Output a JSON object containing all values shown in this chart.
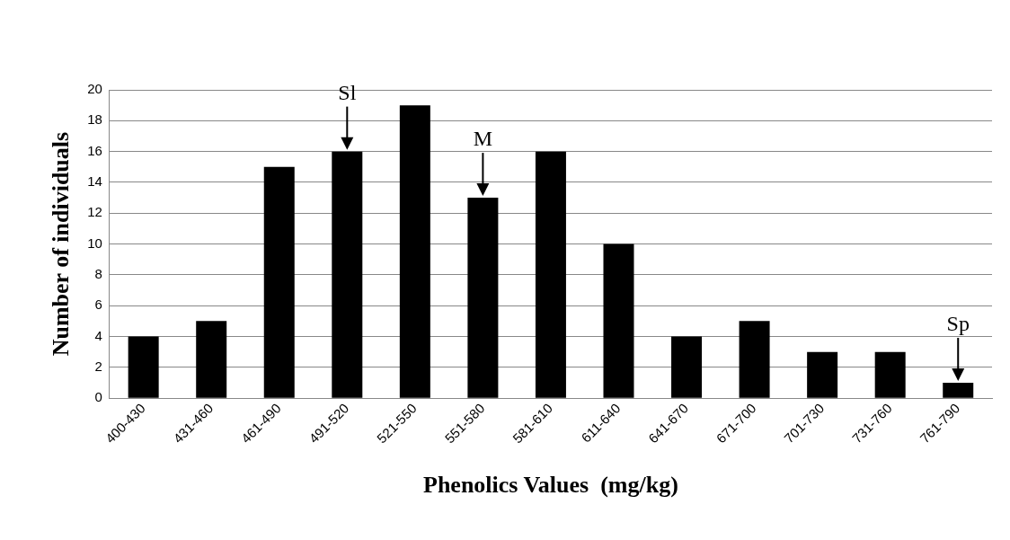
{
  "chart_data": {
    "type": "bar",
    "xlabel": "Phenolics Values  (mg/kg)",
    "ylabel": "Number of individuals",
    "categories": [
      "400-430",
      "431-460",
      "461-490",
      "491-520",
      "521-550",
      "551-580",
      "581-610",
      "611-640",
      "641-670",
      "671-700",
      "701-730",
      "731-760",
      "761-790"
    ],
    "values": [
      4,
      5,
      15,
      16,
      19,
      13,
      16,
      10,
      4,
      5,
      3,
      3,
      1
    ],
    "color": "#000000",
    "ylim": [
      0,
      20
    ],
    "yticks": [
      0,
      2,
      4,
      6,
      8,
      10,
      12,
      14,
      16,
      18,
      20
    ],
    "grid": "y",
    "annotations": [
      {
        "text": "Sl",
        "x": "491-520",
        "y": 16
      },
      {
        "text": "M",
        "x": "551-580",
        "y": 13
      },
      {
        "text": "Sp",
        "x": "761-790",
        "y": 1
      }
    ]
  }
}
